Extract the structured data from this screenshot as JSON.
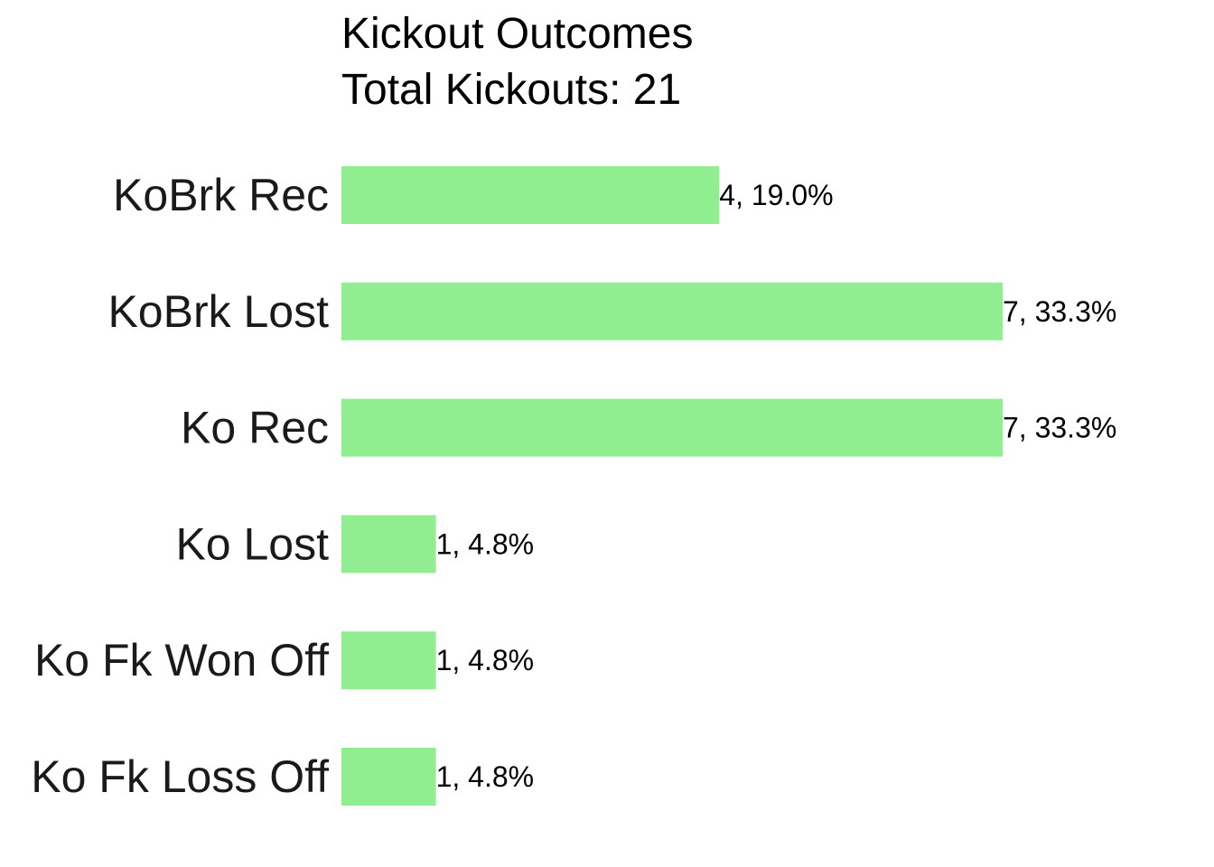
{
  "chart_data": {
    "type": "bar",
    "orientation": "horizontal",
    "title": "Kickout Outcomes",
    "subtitle": "Total Kickouts: 21",
    "xlabel": "",
    "ylabel": "",
    "categories": [
      "KoBrk Rec",
      "KoBrk Lost",
      "Ko Rec",
      "Ko Lost",
      "Ko Fk Won Off",
      "Ko Fk Loss Off"
    ],
    "values": [
      4,
      7,
      7,
      1,
      1,
      1
    ],
    "data_labels": [
      "4, 19.0%",
      "7, 33.3%",
      "7, 33.3%",
      "1, 4.8%",
      "1, 4.8%",
      "1, 4.8%"
    ],
    "xlim": [
      0,
      7
    ],
    "bar_color": "#90EE90",
    "grid": false,
    "legend": "none"
  }
}
